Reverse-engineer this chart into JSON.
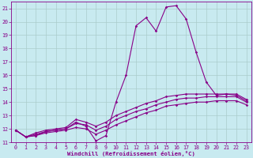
{
  "background_color": "#c8eaf0",
  "grid_color": "#aacccc",
  "line_color": "#880088",
  "xlim": [
    -0.5,
    23.5
  ],
  "ylim": [
    11,
    21.5
  ],
  "xticks": [
    0,
    1,
    2,
    3,
    4,
    5,
    6,
    7,
    8,
    9,
    10,
    11,
    12,
    13,
    14,
    15,
    16,
    17,
    18,
    19,
    20,
    21,
    22,
    23
  ],
  "yticks": [
    11,
    12,
    13,
    14,
    15,
    16,
    17,
    18,
    19,
    20,
    21
  ],
  "xlabel": "Windchill (Refroidissement éolien,°C)",
  "line1_y": [
    11.9,
    11.4,
    11.5,
    11.8,
    11.9,
    12.0,
    12.5,
    12.2,
    11.1,
    11.5,
    14.0,
    16.0,
    19.7,
    20.3,
    19.3,
    21.1,
    21.2,
    20.2,
    17.7,
    15.5,
    14.5,
    14.6,
    14.5,
    14.1
  ],
  "line2_y": [
    11.9,
    11.4,
    11.7,
    11.9,
    12.0,
    12.1,
    12.7,
    12.5,
    12.2,
    12.5,
    13.0,
    13.3,
    13.6,
    13.9,
    14.1,
    14.4,
    14.5,
    14.6,
    14.6,
    14.6,
    14.6,
    14.6,
    14.6,
    14.2
  ],
  "line3_y": [
    11.9,
    11.4,
    11.6,
    11.8,
    11.9,
    12.0,
    12.4,
    12.3,
    11.9,
    12.2,
    12.7,
    13.0,
    13.3,
    13.5,
    13.8,
    14.0,
    14.2,
    14.3,
    14.3,
    14.4,
    14.4,
    14.4,
    14.4,
    14.0
  ],
  "line4_y": [
    11.9,
    11.4,
    11.5,
    11.7,
    11.8,
    11.9,
    12.1,
    12.0,
    11.6,
    11.9,
    12.3,
    12.6,
    12.9,
    13.2,
    13.4,
    13.7,
    13.8,
    13.9,
    14.0,
    14.0,
    14.1,
    14.1,
    14.1,
    13.8
  ],
  "tick_fontsize": 4.8,
  "xlabel_fontsize": 5.2
}
